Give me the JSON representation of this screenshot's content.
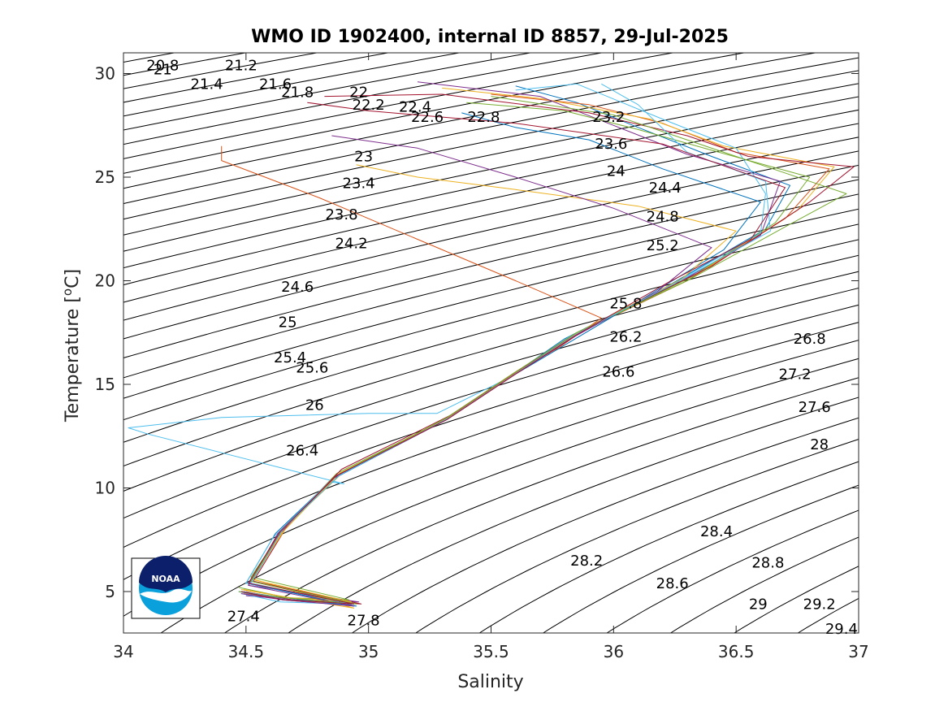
{
  "chart_data": {
    "type": "line",
    "title": "WMO ID 1902400, internal ID 8857, 29-Jul-2025",
    "xlabel": "Salinity",
    "ylabel": "Temperature [",
    "ylabel_unit": "o",
    "ylabel_unit_suffix": "C]",
    "xlim": [
      34,
      37
    ],
    "ylim": [
      3,
      31
    ],
    "xticks": [
      34,
      34.5,
      35,
      35.5,
      36,
      36.5,
      37
    ],
    "xtick_labels": [
      "34",
      "34.5",
      "35",
      "35.5",
      "36",
      "36.5",
      "37"
    ],
    "yticks": [
      5,
      10,
      15,
      20,
      25,
      30
    ],
    "ytick_labels": [
      "5",
      "10",
      "15",
      "20",
      "25",
      "30"
    ],
    "grid": false,
    "legend": "none",
    "isopycnals": {
      "sigma_min": 20.8,
      "sigma_max": 29.4,
      "step": 0.2,
      "color": "#000000"
    },
    "contour_labels": [
      {
        "text": "20.8",
        "s": 34.16,
        "t": 30.4
      },
      {
        "text": "21",
        "s": 34.16,
        "t": 30.2
      },
      {
        "text": "21.2",
        "s": 34.48,
        "t": 30.4
      },
      {
        "text": "21.4",
        "s": 34.34,
        "t": 29.5
      },
      {
        "text": "21.6",
        "s": 34.62,
        "t": 29.5
      },
      {
        "text": "21.8",
        "s": 34.71,
        "t": 29.1
      },
      {
        "text": "22",
        "s": 34.96,
        "t": 29.1
      },
      {
        "text": "22.2",
        "s": 35.0,
        "t": 28.5
      },
      {
        "text": "22.4",
        "s": 35.19,
        "t": 28.4
      },
      {
        "text": "22.6",
        "s": 35.24,
        "t": 27.9
      },
      {
        "text": "22.8",
        "s": 35.47,
        "t": 27.9
      },
      {
        "text": "23.2",
        "s": 35.98,
        "t": 27.9
      },
      {
        "text": "23",
        "s": 34.98,
        "t": 26.0
      },
      {
        "text": "23.6",
        "s": 35.99,
        "t": 26.6
      },
      {
        "text": "23.4",
        "s": 34.96,
        "t": 24.7
      },
      {
        "text": "24",
        "s": 36.01,
        "t": 25.3
      },
      {
        "text": "24.4",
        "s": 36.21,
        "t": 24.5
      },
      {
        "text": "23.8",
        "s": 34.89,
        "t": 23.2
      },
      {
        "text": "24.8",
        "s": 36.2,
        "t": 23.1
      },
      {
        "text": "24.2",
        "s": 34.93,
        "t": 21.8
      },
      {
        "text": "25.2",
        "s": 36.2,
        "t": 21.7
      },
      {
        "text": "24.6",
        "s": 34.71,
        "t": 19.7
      },
      {
        "text": "25.8",
        "s": 36.05,
        "t": 18.9
      },
      {
        "text": "25",
        "s": 34.67,
        "t": 18.0
      },
      {
        "text": "26.2",
        "s": 36.05,
        "t": 17.3
      },
      {
        "text": "26.8",
        "s": 36.8,
        "t": 17.2
      },
      {
        "text": "25.4",
        "s": 34.68,
        "t": 16.3
      },
      {
        "text": "25.6",
        "s": 34.77,
        "t": 15.8
      },
      {
        "text": "26.6",
        "s": 36.02,
        "t": 15.6
      },
      {
        "text": "27.2",
        "s": 36.74,
        "t": 15.5
      },
      {
        "text": "27.6",
        "s": 36.82,
        "t": 13.9
      },
      {
        "text": "26",
        "s": 34.78,
        "t": 14.0
      },
      {
        "text": "28",
        "s": 36.84,
        "t": 12.1
      },
      {
        "text": "26.4",
        "s": 34.73,
        "t": 11.8
      },
      {
        "text": "28.4",
        "s": 36.42,
        "t": 7.9
      },
      {
        "text": "28.2",
        "s": 35.89,
        "t": 6.5
      },
      {
        "text": "28.8",
        "s": 36.63,
        "t": 6.4
      },
      {
        "text": "28.6",
        "s": 36.24,
        "t": 5.4
      },
      {
        "text": "29",
        "s": 36.59,
        "t": 4.4
      },
      {
        "text": "29.2",
        "s": 36.84,
        "t": 4.4
      },
      {
        "text": "27.4",
        "s": 34.49,
        "t": 3.8
      },
      {
        "text": "27.8",
        "s": 34.98,
        "t": 3.6
      },
      {
        "text": "29.4",
        "s": 36.93,
        "t": 3.2
      }
    ],
    "series": [
      {
        "color": "#0072BD",
        "points": [
          [
            34.47,
            5.0
          ],
          [
            34.65,
            4.6
          ],
          [
            34.95,
            4.3
          ],
          [
            34.5,
            5.4
          ],
          [
            34.62,
            7.8
          ],
          [
            34.85,
            10.4
          ],
          [
            35.3,
            13.2
          ],
          [
            35.58,
            15.4
          ],
          [
            35.8,
            17.2
          ],
          [
            36.2,
            19.6
          ],
          [
            36.62,
            22.5
          ],
          [
            36.72,
            24.6
          ],
          [
            36.4,
            26.0
          ],
          [
            36.1,
            27.4
          ],
          [
            35.85,
            28.6
          ],
          [
            35.6,
            29.4
          ]
        ]
      },
      {
        "color": "#D95319",
        "points": [
          [
            34.49,
            4.9
          ],
          [
            34.66,
            4.6
          ],
          [
            34.93,
            4.4
          ],
          [
            34.52,
            5.5
          ],
          [
            34.64,
            7.9
          ],
          [
            34.88,
            10.6
          ],
          [
            35.32,
            13.4
          ],
          [
            35.6,
            15.6
          ],
          [
            35.86,
            17.5
          ],
          [
            36.3,
            20.0
          ],
          [
            36.7,
            23.0
          ],
          [
            36.88,
            25.4
          ],
          [
            36.5,
            26.2
          ],
          [
            36.2,
            27.6
          ],
          [
            35.9,
            28.5
          ],
          [
            35.5,
            29.0
          ]
        ]
      },
      {
        "color": "#EDB120",
        "points": [
          [
            34.48,
            5.1
          ],
          [
            34.68,
            4.7
          ],
          [
            34.94,
            4.2
          ],
          [
            34.53,
            5.6
          ],
          [
            34.66,
            8.1
          ],
          [
            34.9,
            10.8
          ],
          [
            35.34,
            13.5
          ],
          [
            35.62,
            15.7
          ],
          [
            35.9,
            17.8
          ],
          [
            36.35,
            20.4
          ],
          [
            36.75,
            23.4
          ],
          [
            36.9,
            25.5
          ],
          [
            36.45,
            26.5
          ],
          [
            36.15,
            27.8
          ],
          [
            35.7,
            28.8
          ],
          [
            35.3,
            29.3
          ]
        ]
      },
      {
        "color": "#7E2F8E",
        "points": [
          [
            34.5,
            4.8
          ],
          [
            34.7,
            4.6
          ],
          [
            34.96,
            4.5
          ],
          [
            34.51,
            5.3
          ],
          [
            34.63,
            7.7
          ],
          [
            34.86,
            10.5
          ],
          [
            35.31,
            13.3
          ],
          [
            35.59,
            15.5
          ],
          [
            35.84,
            17.4
          ],
          [
            36.25,
            19.8
          ],
          [
            36.6,
            22.2
          ],
          [
            36.68,
            24.8
          ],
          [
            36.3,
            26.1
          ],
          [
            36.0,
            27.5
          ],
          [
            35.7,
            28.9
          ],
          [
            35.2,
            29.6
          ]
        ]
      },
      {
        "color": "#77AC30",
        "points": [
          [
            34.47,
            5.2
          ],
          [
            34.67,
            4.7
          ],
          [
            34.92,
            4.6
          ],
          [
            34.52,
            5.7
          ],
          [
            34.65,
            8.0
          ],
          [
            34.87,
            10.7
          ],
          [
            35.33,
            13.4
          ],
          [
            35.61,
            15.6
          ],
          [
            35.88,
            17.6
          ],
          [
            36.32,
            20.2
          ],
          [
            36.66,
            22.8
          ],
          [
            36.8,
            25.0
          ],
          [
            36.4,
            26.3
          ],
          [
            36.1,
            27.3
          ],
          [
            35.8,
            28.2
          ],
          [
            35.4,
            28.6
          ]
        ]
      },
      {
        "color": "#4DBEEE",
        "points": [
          [
            34.48,
            4.9
          ],
          [
            34.64,
            4.5
          ],
          [
            34.9,
            4.4
          ],
          [
            34.5,
            5.4
          ],
          [
            34.61,
            7.6
          ],
          [
            34.84,
            10.3
          ],
          [
            34.9,
            10.2
          ],
          [
            34.7,
            10.8
          ],
          [
            34.5,
            11.4
          ],
          [
            34.1,
            12.6
          ],
          [
            34.02,
            12.9
          ],
          [
            34.4,
            13.4
          ],
          [
            35.0,
            13.6
          ],
          [
            35.28,
            13.6
          ],
          [
            35.57,
            15.3
          ],
          [
            35.82,
            17.3
          ],
          [
            36.22,
            19.7
          ],
          [
            36.6,
            22.3
          ],
          [
            36.62,
            24.2
          ],
          [
            36.5,
            26.4
          ],
          [
            36.2,
            27.8
          ],
          [
            35.85,
            29.5
          ],
          [
            35.6,
            29.2
          ]
        ]
      },
      {
        "color": "#A2142F",
        "points": [
          [
            34.49,
            5.0
          ],
          [
            34.69,
            4.6
          ],
          [
            34.97,
            4.4
          ],
          [
            34.53,
            5.5
          ],
          [
            34.67,
            8.2
          ],
          [
            34.89,
            10.9
          ],
          [
            35.35,
            13.6
          ],
          [
            35.63,
            15.8
          ],
          [
            35.92,
            17.9
          ],
          [
            36.4,
            20.7
          ],
          [
            36.8,
            23.8
          ],
          [
            36.98,
            25.5
          ],
          [
            36.55,
            26.0
          ],
          [
            36.3,
            27.0
          ],
          [
            35.9,
            28.1
          ],
          [
            35.3,
            29.0
          ],
          [
            34.82,
            28.9
          ]
        ]
      },
      {
        "color": "#0072BD",
        "points": [
          [
            34.48,
            5.0
          ],
          [
            34.66,
            4.7
          ],
          [
            34.94,
            4.3
          ],
          [
            34.51,
            5.4
          ],
          [
            34.64,
            7.9
          ],
          [
            34.88,
            10.6
          ],
          [
            35.32,
            13.3
          ],
          [
            35.6,
            15.5
          ],
          [
            35.83,
            17.1
          ],
          [
            36.1,
            19.0
          ],
          [
            36.45,
            21.5
          ],
          [
            36.6,
            23.8
          ],
          [
            36.2,
            25.4
          ],
          [
            35.9,
            26.8
          ],
          [
            35.6,
            27.4
          ],
          [
            35.38,
            28.1
          ]
        ]
      },
      {
        "color": "#D95319",
        "points": [
          [
            34.5,
            5.0
          ],
          [
            34.67,
            4.6
          ],
          [
            34.95,
            4.4
          ],
          [
            34.52,
            5.5
          ],
          [
            34.65,
            8.0
          ],
          [
            34.87,
            10.6
          ],
          [
            35.31,
            13.3
          ],
          [
            35.59,
            15.5
          ],
          [
            35.78,
            16.8
          ],
          [
            35.95,
            18.2
          ],
          [
            35.6,
            20.0
          ],
          [
            35.2,
            22.0
          ],
          [
            34.8,
            24.0
          ],
          [
            34.4,
            25.8
          ],
          [
            34.4,
            26.5
          ]
        ]
      },
      {
        "color": "#EDB120",
        "points": [
          [
            34.49,
            5.1
          ],
          [
            34.68,
            4.7
          ],
          [
            34.93,
            4.5
          ],
          [
            34.52,
            5.6
          ],
          [
            34.66,
            8.0
          ],
          [
            34.88,
            10.7
          ],
          [
            35.33,
            13.4
          ],
          [
            35.61,
            15.6
          ],
          [
            35.87,
            17.6
          ],
          [
            36.28,
            20.1
          ],
          [
            36.5,
            22.4
          ],
          [
            36.1,
            23.6
          ],
          [
            35.6,
            24.4
          ],
          [
            35.2,
            25.0
          ],
          [
            34.95,
            25.6
          ]
        ]
      },
      {
        "color": "#7E2F8E",
        "points": [
          [
            34.48,
            4.9
          ],
          [
            34.65,
            4.6
          ],
          [
            34.94,
            4.3
          ],
          [
            34.51,
            5.3
          ],
          [
            34.63,
            7.8
          ],
          [
            34.86,
            10.5
          ],
          [
            35.32,
            13.3
          ],
          [
            35.6,
            15.5
          ],
          [
            35.84,
            17.3
          ],
          [
            36.18,
            19.5
          ],
          [
            36.4,
            21.6
          ],
          [
            36.0,
            23.5
          ],
          [
            35.6,
            25.0
          ],
          [
            35.2,
            26.4
          ],
          [
            34.85,
            27.0
          ]
        ]
      },
      {
        "color": "#77AC30",
        "points": [
          [
            34.47,
            5.0
          ],
          [
            34.66,
            4.7
          ],
          [
            34.95,
            4.4
          ],
          [
            34.52,
            5.5
          ],
          [
            34.64,
            7.9
          ],
          [
            34.87,
            10.6
          ],
          [
            35.32,
            13.4
          ],
          [
            35.6,
            15.6
          ],
          [
            35.85,
            17.5
          ],
          [
            36.3,
            20.0
          ],
          [
            36.7,
            22.6
          ],
          [
            36.95,
            24.2
          ],
          [
            36.6,
            25.6
          ],
          [
            36.3,
            26.8
          ],
          [
            36.0,
            28.0
          ],
          [
            35.5,
            28.9
          ]
        ]
      },
      {
        "color": "#4DBEEE",
        "points": [
          [
            34.49,
            5.0
          ],
          [
            34.67,
            4.6
          ],
          [
            34.93,
            4.4
          ],
          [
            34.52,
            5.4
          ],
          [
            34.65,
            8.0
          ],
          [
            34.88,
            10.6
          ],
          [
            35.33,
            13.4
          ],
          [
            35.61,
            15.6
          ],
          [
            35.86,
            17.5
          ],
          [
            36.27,
            20.0
          ],
          [
            36.64,
            22.4
          ],
          [
            36.62,
            24.8
          ],
          [
            36.3,
            26.2
          ],
          [
            36.1,
            28.5
          ],
          [
            35.95,
            29.5
          ]
        ]
      },
      {
        "color": "#A2142F",
        "points": [
          [
            34.48,
            5.0
          ],
          [
            34.66,
            4.6
          ],
          [
            34.94,
            4.4
          ],
          [
            34.51,
            5.4
          ],
          [
            34.64,
            7.9
          ],
          [
            34.87,
            10.6
          ],
          [
            35.32,
            13.3
          ],
          [
            35.6,
            15.5
          ],
          [
            35.85,
            17.4
          ],
          [
            36.22,
            19.9
          ],
          [
            36.56,
            22.0
          ],
          [
            36.7,
            24.5
          ],
          [
            36.2,
            26.6
          ],
          [
            35.6,
            27.6
          ],
          [
            35.0,
            28.2
          ],
          [
            34.75,
            28.6
          ]
        ]
      }
    ]
  }
}
